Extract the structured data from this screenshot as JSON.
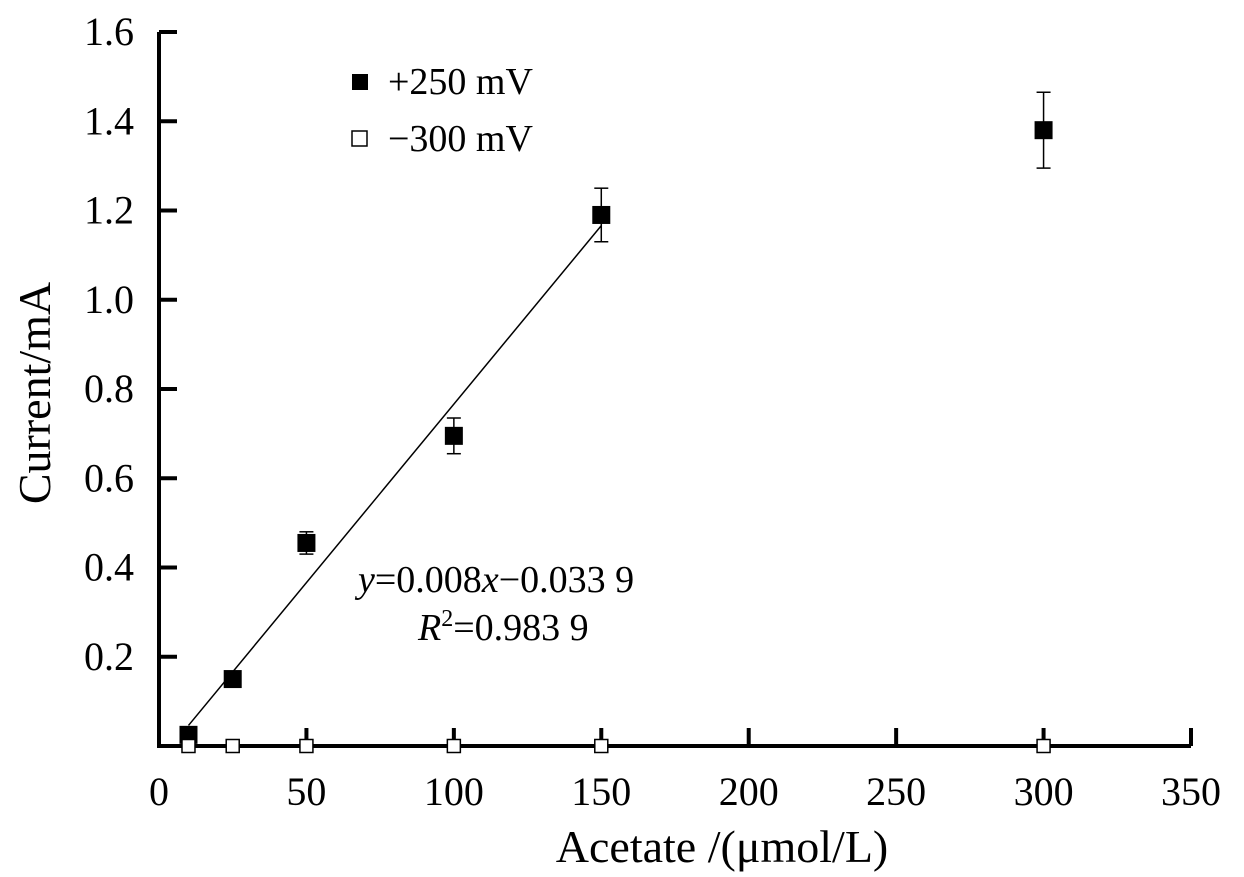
{
  "chart_data": {
    "type": "scatter",
    "xlabel": "Acetate /(μmol/L)",
    "ylabel": "Current/mA",
    "xlim": [
      0,
      350
    ],
    "ylim": [
      0,
      1.6
    ],
    "xticks": [
      0,
      50,
      100,
      150,
      200,
      250,
      300,
      350
    ],
    "xtick_labels": [
      "0",
      "50",
      "100",
      "150",
      "200",
      "250",
      "300",
      "350"
    ],
    "yticks": [
      0.2,
      0.4,
      0.6,
      0.8,
      1.0,
      1.2,
      1.4,
      1.6
    ],
    "ytick_labels": [
      "0.2",
      "0.4",
      "0.6",
      "0.8",
      "1.0",
      "1.2",
      "1.4",
      "1.6"
    ],
    "grid": false,
    "legend_position": "top-left",
    "series": [
      {
        "name": "+250 mV",
        "marker": "filled-square",
        "x": [
          10,
          25,
          50,
          100,
          150,
          300
        ],
        "y": [
          0.025,
          0.15,
          0.455,
          0.695,
          1.19,
          1.38
        ],
        "error": [
          0,
          0,
          0.025,
          0.04,
          0.06,
          0.085
        ]
      },
      {
        "name": "−300 mV",
        "marker": "open-square",
        "x": [
          10,
          25,
          50,
          100,
          150,
          300
        ],
        "y": [
          0,
          0,
          0,
          0,
          0,
          0
        ],
        "error": [
          0,
          0,
          0,
          0,
          0,
          0
        ]
      }
    ],
    "fit_line": {
      "slope": 0.008,
      "intercept": -0.0339,
      "x_range": [
        10,
        150
      ]
    },
    "annotations": {
      "equation_y": "y",
      "equation_eq1": "=0.008",
      "equation_x": "x",
      "equation_rest": "−0.033 9",
      "r2_R": "R",
      "r2_sup": "2",
      "r2_rest": "=0.983 9"
    }
  }
}
